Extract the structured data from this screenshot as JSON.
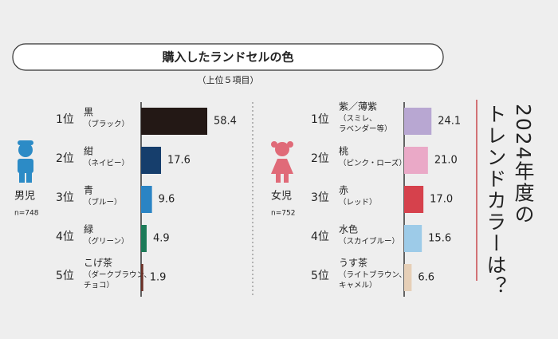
{
  "title": "購入したランドセルの色",
  "subtitle": "（上位５項目）",
  "tagline": [
    "2024年度の",
    "トレンドカラーは？"
  ],
  "chart_data": [
    {
      "type": "bar",
      "title": "男児",
      "subtitle": "n=748",
      "ranks": [
        "1位",
        "2位",
        "3位",
        "4位",
        "5位"
      ],
      "categories": [
        "黒",
        "紺",
        "青",
        "緑",
        "こげ茶"
      ],
      "category_notes": [
        [
          "（ブラック）"
        ],
        [
          "（ネイビー）"
        ],
        [
          "（ブルー）"
        ],
        [
          "（グリーン）"
        ],
        [
          "（ダークブラウン、",
          "チョコ）"
        ]
      ],
      "values": [
        58.4,
        17.6,
        9.6,
        4.9,
        1.9
      ],
      "colors": [
        "#231815",
        "#163e6c",
        "#2b84c4",
        "#1c7a58",
        "#6b2f25"
      ],
      "accent": "#4a98cf"
    },
    {
      "type": "bar",
      "title": "女児",
      "subtitle": "n=752",
      "ranks": [
        "1位",
        "2位",
        "3位",
        "4位",
        "5位"
      ],
      "categories": [
        "紫／薄紫",
        "桃",
        "赤",
        "水色",
        "うす茶"
      ],
      "category_notes": [
        [
          "（スミレ、",
          "ラベンダー等）"
        ],
        [
          "（ピンク・ローズ）"
        ],
        [
          "（レッド）"
        ],
        [
          "（スカイブルー）"
        ],
        [
          "（ライトブラウン、",
          "キャメル）"
        ]
      ],
      "values": [
        24.1,
        21.0,
        17.0,
        15.6,
        6.6
      ],
      "value_labels": [
        "24.1",
        "21.0",
        "17.0",
        "15.6",
        "6.6"
      ],
      "colors": [
        "#b8a7d2",
        "#eaa9c7",
        "#d6414c",
        "#9dcbe8",
        "#e6cfb7"
      ],
      "accent": "#d4545b"
    }
  ]
}
